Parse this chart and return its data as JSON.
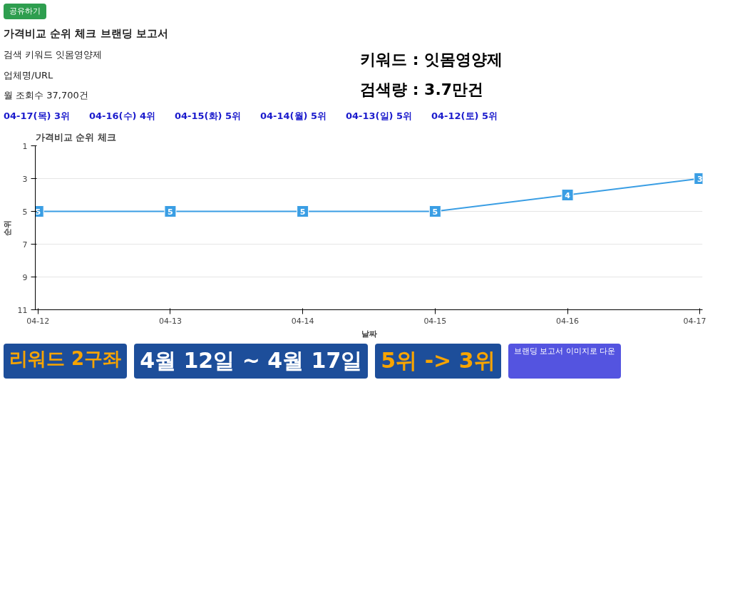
{
  "chart_data": {
    "type": "line",
    "title": "가격비교 순위 체크 브랜딩 보고서",
    "subtitle": "가격비교 순위 체크",
    "xlabel": "날짜",
    "ylabel": "순위",
    "categories": [
      "04-12",
      "04-13",
      "04-14",
      "04-15",
      "04-16",
      "04-17"
    ],
    "series": [
      {
        "color": "#3a9ee4",
        "values": [
          5,
          5,
          5,
          5,
          4,
          3
        ]
      }
    ],
    "ylim": [
      11,
      1
    ],
    "yticks": [
      1,
      3,
      5,
      7,
      9,
      11
    ],
    "grid": "y",
    "marker": "square",
    "line_style": "solid",
    "data_labels": true,
    "annotations": [
      "공유하기",
      "검색 키워드 잇몸영양제",
      "업체명/URL",
      "월 조회수 37,700건",
      "04-17(목) 3위",
      "04-16(수) 4위",
      "04-15(화) 5위",
      "04-14(월) 5위",
      "04-13(일) 5위",
      "04-12(토) 5위",
      "키워드 : 잇몸영양제",
      "검색량 : 3.7만건",
      "리워드 2구좌",
      "4월 12일 ~ 4월 17일",
      "5위 -> 3위",
      "브랜딩 보고서 이미지로 다운"
    ]
  }
}
